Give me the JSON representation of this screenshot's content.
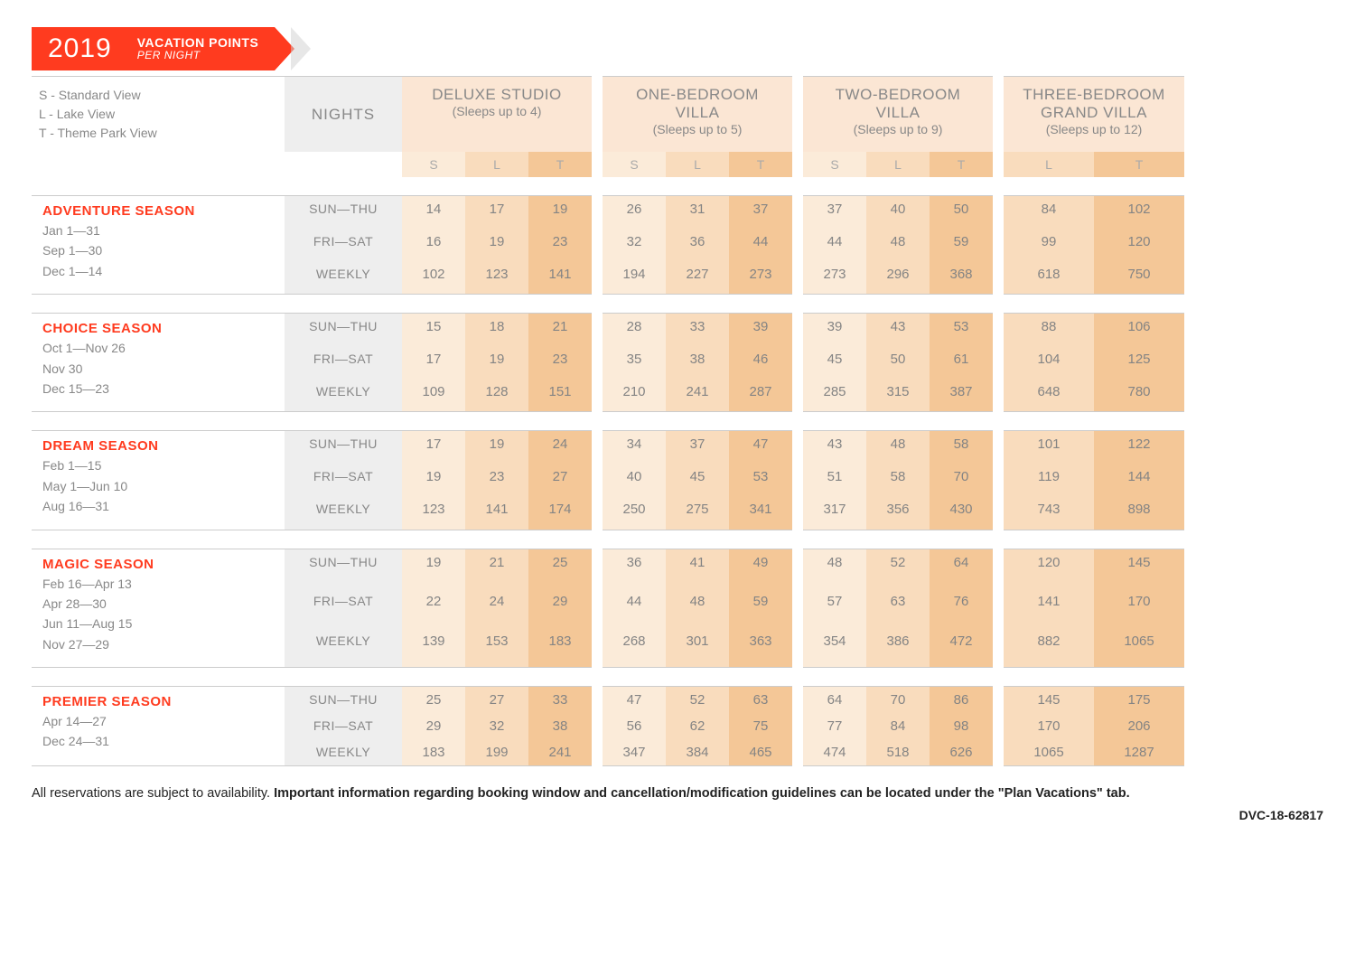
{
  "banner": {
    "year": "2019",
    "title": "VACATION POINTS",
    "subtitle": "PER NIGHT"
  },
  "legend": [
    "S - Standard View",
    "L - Lake View",
    "T - Theme Park View"
  ],
  "nights_label": "NIGHTS",
  "room_types": [
    {
      "title": "DELUXE STUDIO",
      "sub": "(Sleeps up to 4)",
      "cols": [
        "S",
        "L",
        "T"
      ]
    },
    {
      "title": "ONE-BEDROOM VILLA",
      "sub": "(Sleeps up to 5)",
      "cols": [
        "S",
        "L",
        "T"
      ]
    },
    {
      "title": "TWO-BEDROOM VILLA",
      "sub": "(Sleeps up to 9)",
      "cols": [
        "S",
        "L",
        "T"
      ]
    },
    {
      "title": "THREE-BEDROOM GRAND VILLA",
      "sub": "(Sleeps up to 12)",
      "cols": [
        "L",
        "T"
      ]
    }
  ],
  "shades": [
    "#fbebd9",
    "#f9dcbd",
    "#f4c797"
  ],
  "night_types": [
    "SUN—THU",
    "FRI—SAT",
    "WEEKLY"
  ],
  "seasons": [
    {
      "name": "ADVENTURE SEASON",
      "dates": [
        "Jan 1—31",
        "Sep 1—30",
        "Dec 1—14"
      ],
      "rows": [
        [
          14,
          17,
          19,
          26,
          31,
          37,
          37,
          40,
          50,
          84,
          102
        ],
        [
          16,
          19,
          23,
          32,
          36,
          44,
          44,
          48,
          59,
          99,
          120
        ],
        [
          102,
          123,
          141,
          194,
          227,
          273,
          273,
          296,
          368,
          618,
          750
        ]
      ]
    },
    {
      "name": "CHOICE SEASON",
      "dates": [
        "Oct 1—Nov 26",
        "Nov 30",
        "Dec 15—23"
      ],
      "rows": [
        [
          15,
          18,
          21,
          28,
          33,
          39,
          39,
          43,
          53,
          88,
          106
        ],
        [
          17,
          19,
          23,
          35,
          38,
          46,
          45,
          50,
          61,
          104,
          125
        ],
        [
          109,
          128,
          151,
          210,
          241,
          287,
          285,
          315,
          387,
          648,
          780
        ]
      ]
    },
    {
      "name": "DREAM SEASON",
      "dates": [
        "Feb 1—15",
        "May 1—Jun 10",
        "Aug 16—31"
      ],
      "rows": [
        [
          17,
          19,
          24,
          34,
          37,
          47,
          43,
          48,
          58,
          101,
          122
        ],
        [
          19,
          23,
          27,
          40,
          45,
          53,
          51,
          58,
          70,
          119,
          144
        ],
        [
          123,
          141,
          174,
          250,
          275,
          341,
          317,
          356,
          430,
          743,
          898
        ]
      ]
    },
    {
      "name": "MAGIC SEASON",
      "dates": [
        "Feb 16—Apr 13",
        "Apr 28—30",
        "Jun 11—Aug 15",
        "Nov 27—29"
      ],
      "rows": [
        [
          19,
          21,
          25,
          36,
          41,
          49,
          48,
          52,
          64,
          120,
          145
        ],
        [
          22,
          24,
          29,
          44,
          48,
          59,
          57,
          63,
          76,
          141,
          170
        ],
        [
          139,
          153,
          183,
          268,
          301,
          363,
          354,
          386,
          472,
          882,
          1065
        ]
      ]
    },
    {
      "name": "PREMIER SEASON",
      "dates": [
        "Apr 14—27",
        "Dec 24—31"
      ],
      "rows": [
        [
          25,
          27,
          33,
          47,
          52,
          63,
          64,
          70,
          86,
          145,
          175
        ],
        [
          29,
          32,
          38,
          56,
          62,
          75,
          77,
          84,
          98,
          170,
          206
        ],
        [
          183,
          199,
          241,
          347,
          384,
          465,
          474,
          518,
          626,
          1065,
          1287
        ]
      ]
    }
  ],
  "footer": {
    "plain": "All reservations are subject to availability. ",
    "bold": "Important information regarding booking window and cancellation/modification guidelines can be located under the \"Plan Vacations\" tab.",
    "docid": "DVC-18-62817"
  }
}
